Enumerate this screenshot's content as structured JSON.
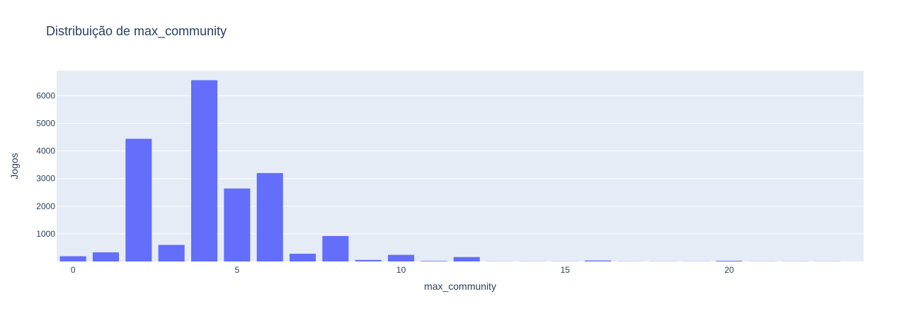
{
  "chart_data": {
    "type": "bar",
    "title": "Distribuição de max_community",
    "xlabel": "max_community",
    "ylabel": "Jogos",
    "x": [
      0,
      1,
      2,
      3,
      4,
      5,
      6,
      7,
      8,
      9,
      10,
      11,
      12,
      13,
      14,
      15,
      16,
      17,
      18,
      19,
      20,
      21,
      22,
      23
    ],
    "values": [
      190,
      330,
      4440,
      600,
      6560,
      2640,
      3200,
      280,
      920,
      55,
      240,
      20,
      160,
      5,
      5,
      5,
      35,
      5,
      5,
      5,
      25,
      5,
      5,
      5
    ],
    "x_ticks": [
      0,
      5,
      10,
      15,
      20
    ],
    "y_ticks": [
      1000,
      2000,
      3000,
      4000,
      5000,
      6000
    ],
    "xlim": [
      -0.5,
      24.1
    ],
    "ylim": [
      0,
      6905
    ],
    "grid": true,
    "colors": {
      "bar": "#636efa",
      "plot_bg": "#e5ecf6",
      "grid": "#ffffff",
      "text": "#2a3f5f"
    }
  }
}
